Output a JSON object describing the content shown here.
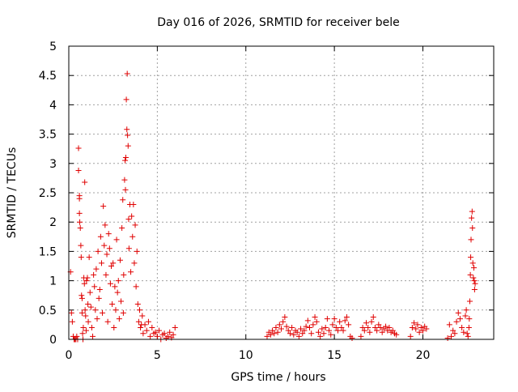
{
  "chart_data": {
    "type": "scatter",
    "title": "Day 016 of 2026, SRMTID for receiver bele",
    "xlabel": "GPS time / hours",
    "ylabel": "SRMTID / TECUs",
    "xlim": [
      0,
      24
    ],
    "ylim": [
      0,
      5
    ],
    "x_ticks": [
      0,
      5,
      10,
      15,
      20
    ],
    "x_tick_labels": [
      "0",
      "5",
      "10",
      "15",
      "20"
    ],
    "y_ticks": [
      0,
      0.5,
      1,
      1.5,
      2,
      2.5,
      3,
      3.5,
      4,
      4.5,
      5
    ],
    "y_tick_labels": [
      "0",
      "0.5",
      "1",
      "1.5",
      "2",
      "2.5",
      "3",
      "3.5",
      "4",
      "4.5",
      "5"
    ],
    "grid": true,
    "marker": "plus",
    "series": [
      {
        "name": "SRMTID",
        "color": "#e00000",
        "points": [
          [
            0.1,
            1.15
          ],
          [
            0.15,
            0.45
          ],
          [
            0.2,
            0.3
          ],
          [
            0.25,
            0.05
          ],
          [
            0.3,
            0.0
          ],
          [
            0.35,
            0.0
          ],
          [
            0.4,
            0.0
          ],
          [
            0.45,
            0.05
          ],
          [
            0.5,
            0.0
          ],
          [
            0.55,
            3.26
          ],
          [
            0.55,
            2.88
          ],
          [
            0.6,
            2.45
          ],
          [
            0.6,
            2.4
          ],
          [
            0.6,
            2.15
          ],
          [
            0.62,
            2.0
          ],
          [
            0.65,
            1.9
          ],
          [
            0.68,
            1.6
          ],
          [
            0.7,
            1.4
          ],
          [
            0.72,
            0.75
          ],
          [
            0.75,
            0.7
          ],
          [
            0.75,
            0.45
          ],
          [
            0.78,
            0.1
          ],
          [
            0.8,
            0.0
          ],
          [
            0.82,
            0.2
          ],
          [
            0.85,
            1.05
          ],
          [
            0.88,
            0.95
          ],
          [
            0.9,
            2.68
          ],
          [
            0.92,
            0.5
          ],
          [
            0.95,
            0.4
          ],
          [
            0.98,
            0.15
          ],
          [
            1.0,
            1.0
          ],
          [
            1.05,
            1.05
          ],
          [
            1.08,
            0.6
          ],
          [
            1.1,
            0.3
          ],
          [
            1.15,
            1.4
          ],
          [
            1.2,
            0.8
          ],
          [
            1.25,
            0.55
          ],
          [
            1.3,
            0.2
          ],
          [
            1.35,
            0.05
          ],
          [
            1.4,
            1.1
          ],
          [
            1.45,
            0.9
          ],
          [
            1.5,
            0.5
          ],
          [
            1.55,
            1.2
          ],
          [
            1.6,
            0.35
          ],
          [
            1.65,
            1.5
          ],
          [
            1.7,
            0.7
          ],
          [
            1.75,
            0.85
          ],
          [
            1.8,
            1.75
          ],
          [
            1.85,
            1.3
          ],
          [
            1.9,
            0.45
          ],
          [
            1.95,
            2.27
          ],
          [
            2.0,
            1.6
          ],
          [
            2.05,
            1.95
          ],
          [
            2.1,
            1.1
          ],
          [
            2.15,
            1.45
          ],
          [
            2.2,
            0.3
          ],
          [
            2.25,
            1.8
          ],
          [
            2.3,
            1.55
          ],
          [
            2.35,
            0.95
          ],
          [
            2.4,
            1.25
          ],
          [
            2.45,
            0.6
          ],
          [
            2.5,
            1.3
          ],
          [
            2.55,
            0.2
          ],
          [
            2.6,
            0.9
          ],
          [
            2.65,
            0.5
          ],
          [
            2.7,
            1.7
          ],
          [
            2.75,
            0.8
          ],
          [
            2.8,
            1.0
          ],
          [
            2.85,
            0.35
          ],
          [
            2.9,
            1.35
          ],
          [
            2.95,
            0.65
          ],
          [
            3.0,
            1.9
          ],
          [
            3.05,
            2.38
          ],
          [
            3.08,
            0.45
          ],
          [
            3.1,
            1.1
          ],
          [
            3.15,
            2.72
          ],
          [
            3.18,
            3.05
          ],
          [
            3.2,
            2.55
          ],
          [
            3.22,
            3.1
          ],
          [
            3.25,
            4.09
          ],
          [
            3.28,
            3.58
          ],
          [
            3.3,
            4.53
          ],
          [
            3.32,
            3.48
          ],
          [
            3.35,
            3.3
          ],
          [
            3.38,
            2.05
          ],
          [
            3.4,
            1.55
          ],
          [
            3.45,
            2.3
          ],
          [
            3.5,
            1.15
          ],
          [
            3.55,
            2.1
          ],
          [
            3.6,
            1.75
          ],
          [
            3.65,
            2.3
          ],
          [
            3.7,
            1.3
          ],
          [
            3.75,
            1.95
          ],
          [
            3.8,
            0.9
          ],
          [
            3.85,
            1.5
          ],
          [
            3.9,
            0.6
          ],
          [
            3.95,
            0.3
          ],
          [
            4.0,
            0.5
          ],
          [
            4.05,
            0.2
          ],
          [
            4.1,
            0.25
          ],
          [
            4.15,
            0.4
          ],
          [
            4.2,
            0.1
          ],
          [
            4.3,
            0.25
          ],
          [
            4.4,
            0.15
          ],
          [
            4.5,
            0.3
          ],
          [
            4.6,
            0.05
          ],
          [
            4.7,
            0.2
          ],
          [
            4.8,
            0.1
          ],
          [
            4.9,
            0.12
          ],
          [
            5.0,
            0.05
          ],
          [
            5.1,
            0.15
          ],
          [
            5.2,
            0.0
          ],
          [
            5.3,
            0.08
          ],
          [
            5.4,
            0.1
          ],
          [
            5.5,
            0.02
          ],
          [
            5.6,
            0.05
          ],
          [
            5.7,
            0.12
          ],
          [
            5.8,
            0.03
          ],
          [
            5.9,
            0.08
          ],
          [
            6.0,
            0.2
          ],
          [
            11.2,
            0.05
          ],
          [
            11.3,
            0.12
          ],
          [
            11.4,
            0.08
          ],
          [
            11.5,
            0.15
          ],
          [
            11.6,
            0.1
          ],
          [
            11.7,
            0.2
          ],
          [
            11.8,
            0.12
          ],
          [
            11.9,
            0.25
          ],
          [
            12.0,
            0.18
          ],
          [
            12.1,
            0.3
          ],
          [
            12.2,
            0.38
          ],
          [
            12.3,
            0.22
          ],
          [
            12.4,
            0.15
          ],
          [
            12.5,
            0.1
          ],
          [
            12.6,
            0.2
          ],
          [
            12.7,
            0.08
          ],
          [
            12.8,
            0.15
          ],
          [
            12.9,
            0.12
          ],
          [
            13.0,
            0.05
          ],
          [
            13.1,
            0.18
          ],
          [
            13.2,
            0.1
          ],
          [
            13.3,
            0.15
          ],
          [
            13.4,
            0.22
          ],
          [
            13.5,
            0.32
          ],
          [
            13.6,
            0.2
          ],
          [
            13.7,
            0.1
          ],
          [
            13.8,
            0.25
          ],
          [
            13.9,
            0.38
          ],
          [
            14.0,
            0.3
          ],
          [
            14.1,
            0.12
          ],
          [
            14.2,
            0.05
          ],
          [
            14.3,
            0.18
          ],
          [
            14.4,
            0.1
          ],
          [
            14.5,
            0.2
          ],
          [
            14.6,
            0.35
          ],
          [
            14.7,
            0.15
          ],
          [
            14.8,
            0.08
          ],
          [
            14.9,
            0.25
          ],
          [
            15.0,
            0.35
          ],
          [
            15.1,
            0.2
          ],
          [
            15.2,
            0.15
          ],
          [
            15.3,
            0.3
          ],
          [
            15.4,
            0.2
          ],
          [
            15.5,
            0.15
          ],
          [
            15.6,
            0.32
          ],
          [
            15.7,
            0.38
          ],
          [
            15.8,
            0.25
          ],
          [
            15.9,
            0.05
          ],
          [
            16.0,
            0.02
          ],
          [
            16.5,
            0.05
          ],
          [
            16.6,
            0.2
          ],
          [
            16.7,
            0.15
          ],
          [
            16.8,
            0.28
          ],
          [
            16.9,
            0.2
          ],
          [
            17.0,
            0.12
          ],
          [
            17.1,
            0.3
          ],
          [
            17.2,
            0.38
          ],
          [
            17.3,
            0.2
          ],
          [
            17.4,
            0.15
          ],
          [
            17.5,
            0.25
          ],
          [
            17.6,
            0.2
          ],
          [
            17.7,
            0.12
          ],
          [
            17.8,
            0.18
          ],
          [
            17.9,
            0.22
          ],
          [
            18.0,
            0.15
          ],
          [
            18.1,
            0.2
          ],
          [
            18.2,
            0.12
          ],
          [
            18.3,
            0.15
          ],
          [
            18.4,
            0.1
          ],
          [
            18.5,
            0.08
          ],
          [
            19.3,
            0.05
          ],
          [
            19.4,
            0.2
          ],
          [
            19.5,
            0.28
          ],
          [
            19.6,
            0.18
          ],
          [
            19.7,
            0.25
          ],
          [
            19.8,
            0.12
          ],
          [
            19.9,
            0.2
          ],
          [
            20.0,
            0.15
          ],
          [
            20.1,
            0.22
          ],
          [
            20.2,
            0.18
          ],
          [
            21.4,
            0.02
          ],
          [
            21.5,
            0.25
          ],
          [
            21.6,
            0.05
          ],
          [
            21.7,
            0.15
          ],
          [
            21.8,
            0.1
          ],
          [
            21.9,
            0.3
          ],
          [
            22.0,
            0.45
          ],
          [
            22.1,
            0.35
          ],
          [
            22.2,
            0.2
          ],
          [
            22.3,
            0.12
          ],
          [
            22.4,
            0.4
          ],
          [
            22.45,
            0.5
          ],
          [
            22.5,
            0.1
          ],
          [
            22.55,
            0.05
          ],
          [
            22.6,
            0.2
          ],
          [
            22.62,
            0.35
          ],
          [
            22.65,
            0.65
          ],
          [
            22.68,
            1.1
          ],
          [
            22.7,
            1.4
          ],
          [
            22.72,
            1.7
          ],
          [
            22.75,
            2.07
          ],
          [
            22.78,
            2.18
          ],
          [
            22.8,
            1.9
          ],
          [
            22.82,
            1.3
          ],
          [
            22.85,
            1.05
          ],
          [
            22.88,
            1.22
          ],
          [
            22.9,
            1.0
          ],
          [
            22.92,
            0.85
          ],
          [
            22.95,
            0.95
          ]
        ]
      }
    ]
  }
}
